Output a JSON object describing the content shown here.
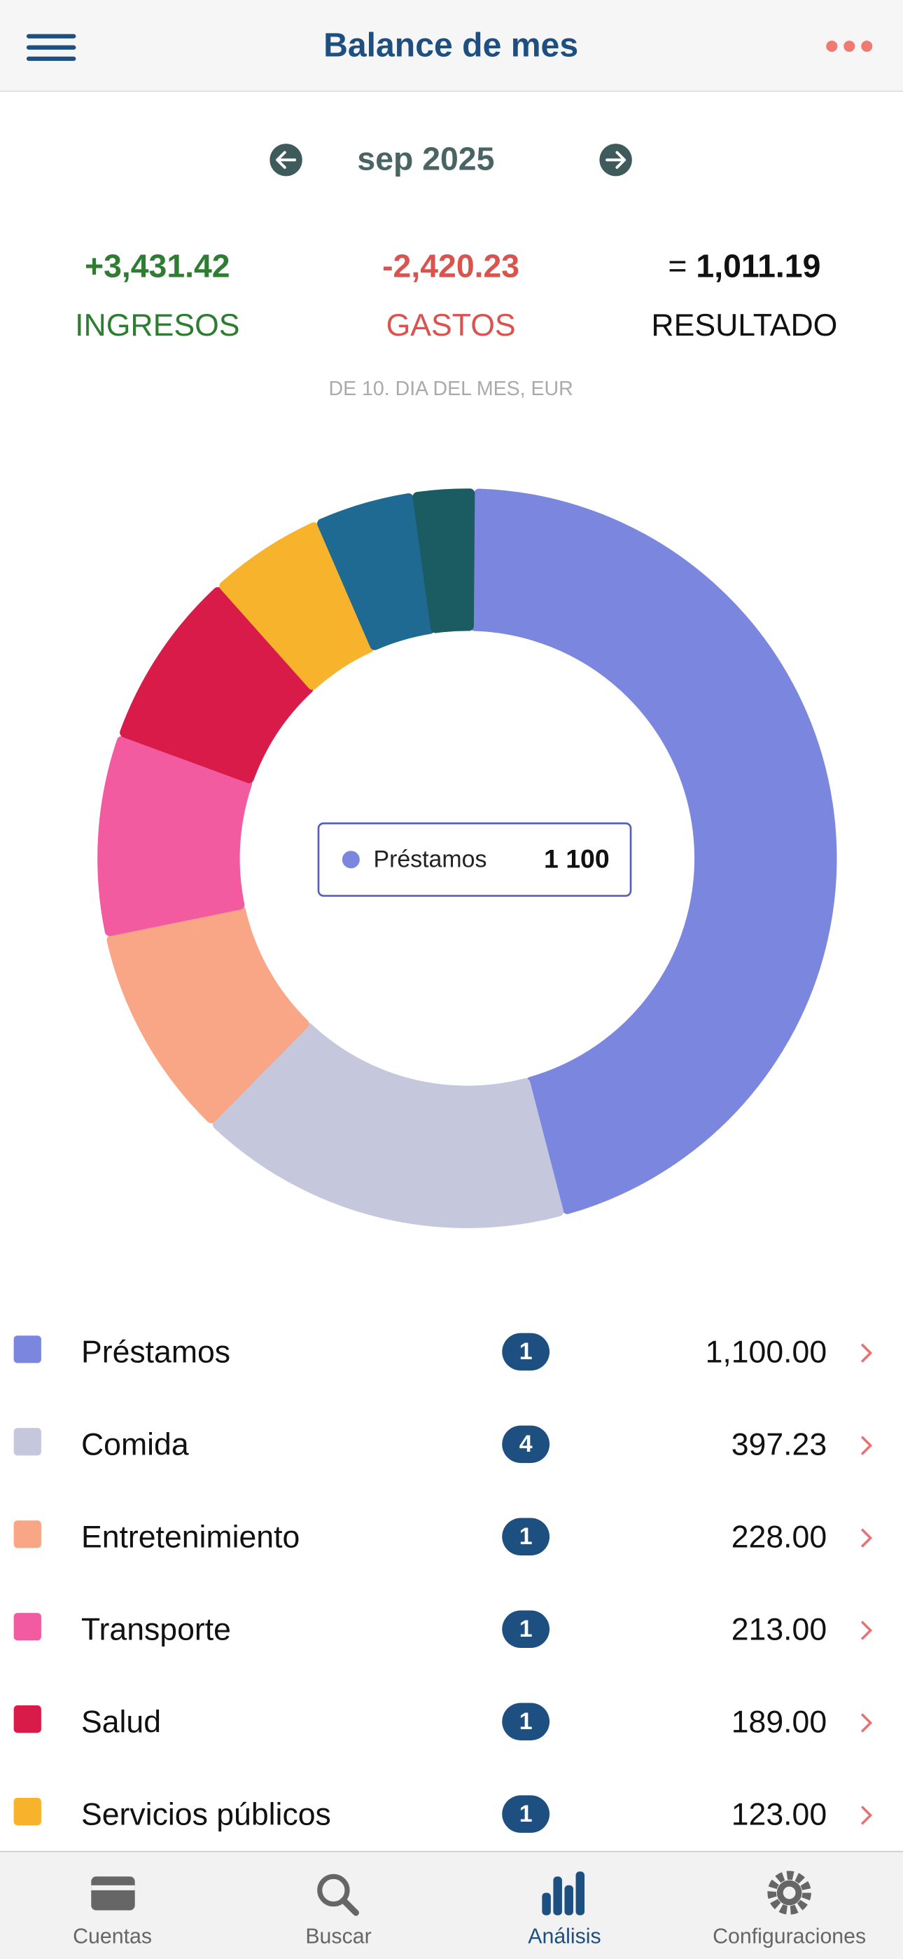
{
  "header": {
    "title": "Balance de mes",
    "month": "sep 2025"
  },
  "totals": {
    "income": {
      "value": "+3,431.42",
      "label": "INGRESOS"
    },
    "expenses": {
      "value": "-2,420.23",
      "label": "GASTOS"
    },
    "result": {
      "sign": "=",
      "value": "1,011.19",
      "label": "RESULTADO"
    },
    "note": "DE 10. DIA DEL MES, EUR"
  },
  "chart_data": {
    "type": "donut",
    "categories": [
      "Préstamos",
      "Comida",
      "Entretenimiento",
      "Transporte",
      "Salud",
      "Servicios públicos",
      null,
      null
    ],
    "values": [
      1100,
      397.23,
      228,
      213,
      189,
      123,
      105,
      65
    ],
    "value_labels": [
      "1,100.00",
      "397.23",
      "228.00",
      "213.00",
      "189.00",
      "123.00",
      null,
      null
    ],
    "counts": [
      1,
      4,
      1,
      1,
      1,
      1,
      null,
      null
    ],
    "colors": [
      "#7b86de",
      "#c5c7dc",
      "#f8a686",
      "#f25ba0",
      "#d81b48",
      "#f7b32b",
      "#1f6a92",
      "#1b5c63"
    ],
    "tooltip": {
      "index": 0,
      "value_label": "1 100"
    }
  },
  "tabs": [
    {
      "label": "Cuentas",
      "active": false
    },
    {
      "label": "Buscar",
      "active": false
    },
    {
      "label": "Análisis",
      "active": true
    },
    {
      "label": "Configuraciones",
      "active": false
    }
  ]
}
